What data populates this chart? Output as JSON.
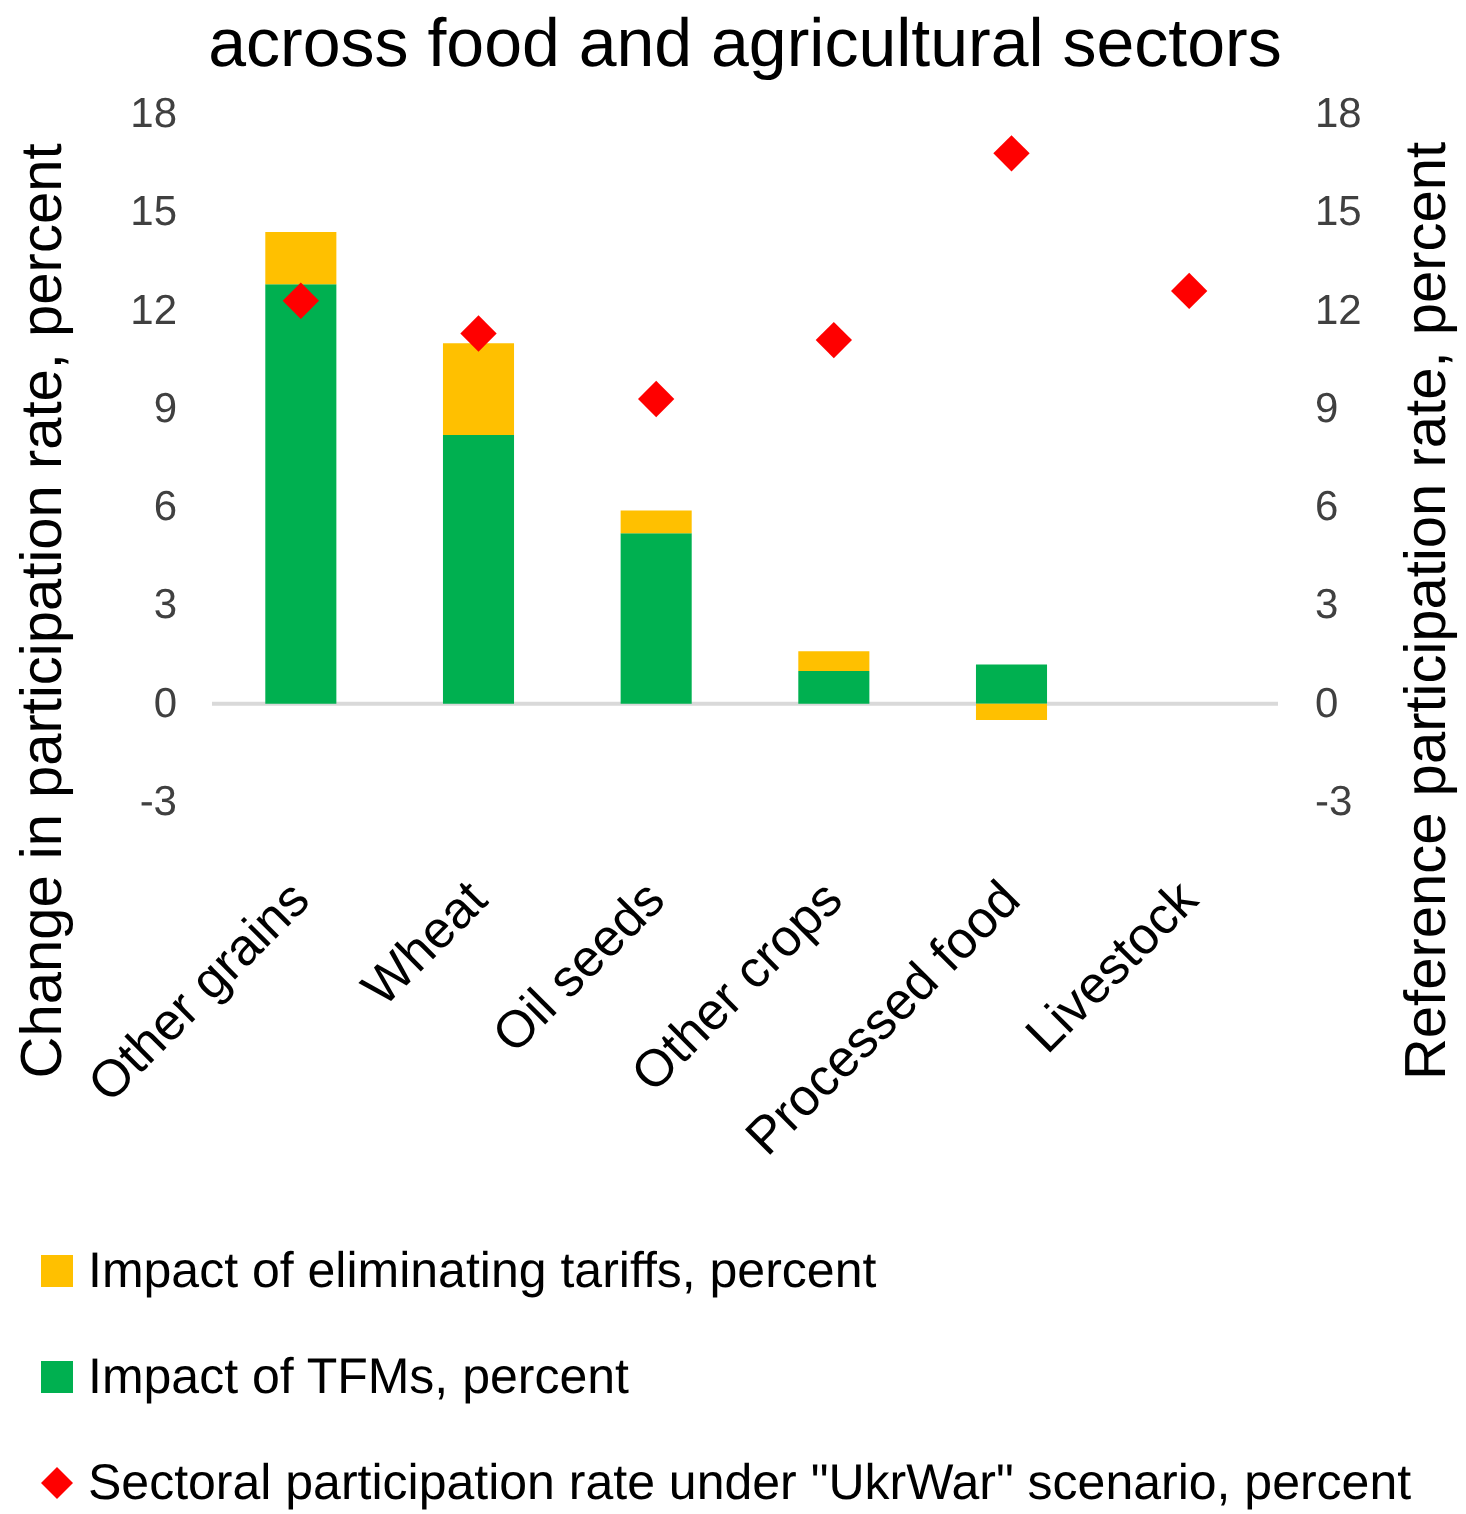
{
  "chart_data": {
    "type": "bar",
    "title": "across food and agricultural sectors",
    "ylabel": "Change in participation rate, percent",
    "y2label": "Reference participation rate, percent",
    "categories": [
      "Other grains",
      "Wheat",
      "Oil seeds",
      "Other crops",
      "Processed food",
      "Livestock"
    ],
    "stacked": true,
    "series": [
      {
        "name": "Impact of TFMs, percent",
        "color": "#00b050",
        "values": [
          12.8,
          8.2,
          5.2,
          1.0,
          1.2,
          null
        ]
      },
      {
        "name": "Impact of eliminating tariffs, percent",
        "color": "#ffc000",
        "values": [
          1.6,
          2.8,
          0.7,
          0.6,
          -0.5,
          null
        ]
      },
      {
        "name": "Sectoral participation rate under \"UkrWar\" scenario, percent",
        "type": "scatter",
        "axis": "y2",
        "marker": "diamond",
        "color": "#ff0000",
        "values": [
          12.3,
          11.3,
          9.3,
          11.1,
          16.8,
          12.6
        ]
      }
    ],
    "ylim": [
      -3,
      18
    ],
    "yticks": [
      -3,
      0,
      3,
      6,
      9,
      12,
      15,
      18
    ],
    "y2lim": [
      -3,
      18
    ],
    "y2ticks": [
      -3,
      0,
      3,
      6,
      9,
      12,
      15,
      18
    ],
    "legend": "bottom"
  }
}
